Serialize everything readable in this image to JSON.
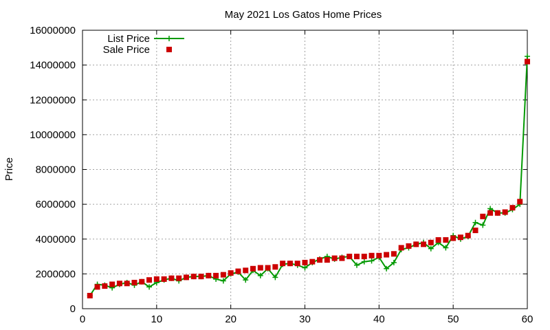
{
  "chart_data": {
    "type": "line",
    "title": "May 2021 Los Gatos Home Prices",
    "xlabel": "",
    "ylabel": "Price",
    "xlim": [
      0,
      60
    ],
    "ylim": [
      0,
      16000000
    ],
    "x_ticks": [
      0,
      10,
      20,
      30,
      40,
      50,
      60
    ],
    "y_ticks": [
      0,
      2000000,
      4000000,
      6000000,
      8000000,
      10000000,
      12000000,
      14000000,
      16000000
    ],
    "grid": true,
    "legend_position": "top-left",
    "series": [
      {
        "name": "List Price",
        "style": "line-with-plus-markers",
        "color": "#009900",
        "x": [
          1,
          2,
          3,
          4,
          5,
          6,
          7,
          8,
          9,
          10,
          11,
          12,
          13,
          14,
          15,
          16,
          17,
          18,
          19,
          20,
          21,
          22,
          23,
          24,
          25,
          26,
          27,
          28,
          29,
          30,
          31,
          32,
          33,
          34,
          35,
          36,
          37,
          38,
          39,
          40,
          41,
          42,
          43,
          44,
          45,
          46,
          47,
          48,
          49,
          50,
          51,
          52,
          53,
          54,
          55,
          56,
          57,
          58,
          59,
          60
        ],
        "values": [
          750000,
          1400000,
          1350000,
          1200000,
          1400000,
          1500000,
          1350000,
          1550000,
          1250000,
          1500000,
          1650000,
          1750000,
          1600000,
          1800000,
          1850000,
          1850000,
          1900000,
          1700000,
          1600000,
          2000000,
          2100000,
          1650000,
          2200000,
          1900000,
          2300000,
          1800000,
          2550000,
          2600000,
          2500000,
          2350000,
          2650000,
          2850000,
          3000000,
          2850000,
          2950000,
          3000000,
          2500000,
          2700000,
          2750000,
          2950000,
          2300000,
          2650000,
          3400000,
          3500000,
          3700000,
          3800000,
          3450000,
          3800000,
          3500000,
          4200000,
          4000000,
          4150000,
          4950000,
          4800000,
          5750000,
          5500000,
          5500000,
          5700000,
          6000000,
          14500000
        ]
      },
      {
        "name": "Sale Price",
        "style": "square-markers",
        "color": "#cc0000",
        "x": [
          1,
          2,
          3,
          4,
          5,
          6,
          7,
          8,
          9,
          10,
          11,
          12,
          13,
          14,
          15,
          16,
          17,
          18,
          19,
          20,
          21,
          22,
          23,
          24,
          25,
          26,
          27,
          28,
          29,
          30,
          31,
          32,
          33,
          34,
          35,
          36,
          37,
          38,
          39,
          40,
          41,
          42,
          43,
          44,
          45,
          46,
          47,
          48,
          49,
          50,
          51,
          52,
          53,
          54,
          55,
          56,
          57,
          58,
          59,
          60
        ],
        "values": [
          750000,
          1250000,
          1300000,
          1400000,
          1450000,
          1450000,
          1500000,
          1550000,
          1650000,
          1700000,
          1700000,
          1750000,
          1750000,
          1800000,
          1850000,
          1850000,
          1900000,
          1900000,
          1950000,
          2050000,
          2150000,
          2200000,
          2300000,
          2350000,
          2350000,
          2400000,
          2600000,
          2600000,
          2600000,
          2650000,
          2700000,
          2800000,
          2800000,
          2900000,
          2900000,
          3000000,
          3000000,
          3000000,
          3050000,
          3050000,
          3100000,
          3150000,
          3500000,
          3600000,
          3700000,
          3700000,
          3800000,
          3950000,
          3950000,
          4050000,
          4100000,
          4200000,
          4500000,
          5300000,
          5500000,
          5500000,
          5550000,
          5800000,
          6150000,
          14200000
        ]
      }
    ]
  }
}
